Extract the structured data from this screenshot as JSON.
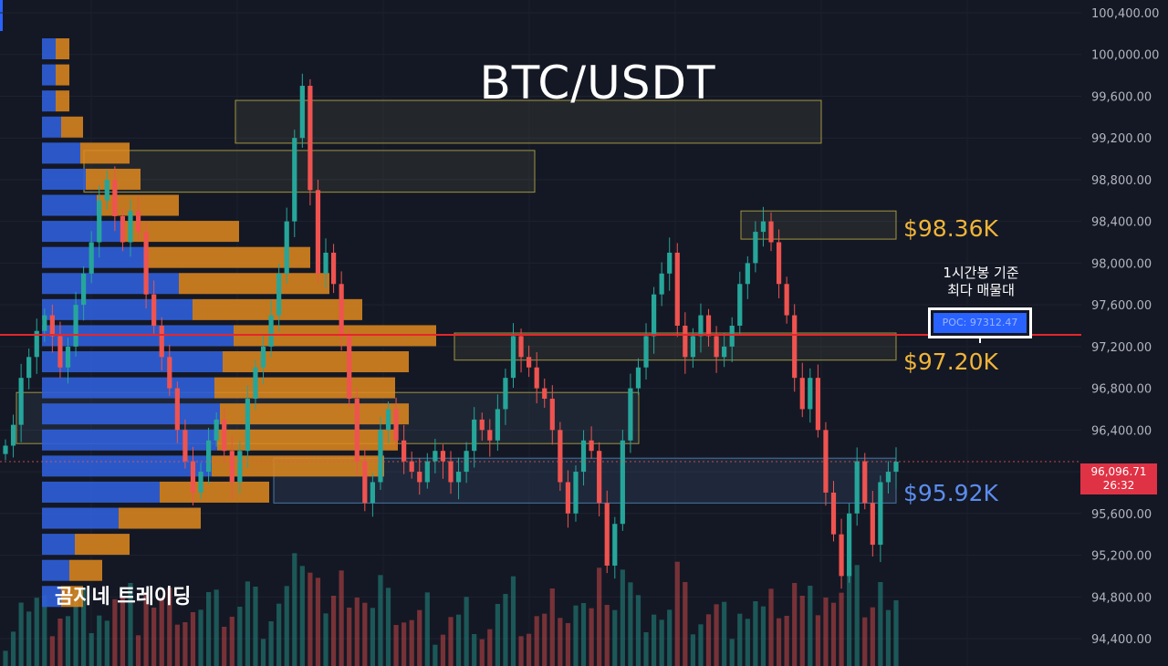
{
  "chart_data": {
    "type": "candlestick",
    "title": "BTC/USDT",
    "watermark": "곰지네 트레이딩",
    "yaxis": {
      "ticks": [
        "100,400.00",
        "100,000.00",
        "99,600.00",
        "99,200.00",
        "98,800.00",
        "98,400.00",
        "98,000.00",
        "97,600.00",
        "97,200.00",
        "96,800.00",
        "96,400.00",
        "96,000.00",
        "95,600.00",
        "95,200.00",
        "94,800.00",
        "94,400.00"
      ],
      "range": [
        94260,
        100460
      ]
    },
    "current_price": "96,096.71",
    "countdown": "26:32",
    "poc": {
      "caption": [
        "1시간봉 기준",
        "최다 매물대"
      ],
      "label": "POC: 97312.47",
      "value": 97312.47
    },
    "levels": [
      {
        "label": "$98.36K",
        "value": 98360,
        "color": "#f0b43a"
      },
      {
        "label": "$97.20K",
        "value": 97200,
        "color": "#f0b43a"
      },
      {
        "label": "$95.92K",
        "value": 95920,
        "color": "#5b8def"
      }
    ],
    "close_series": [
      96250,
      96450,
      96900,
      97100,
      97350,
      97500,
      97300,
      97000,
      97200,
      97600,
      97900,
      98200,
      98600,
      98800,
      98450,
      98200,
      98500,
      98300,
      97700,
      97400,
      97100,
      96800,
      96400,
      96100,
      95800,
      96000,
      96300,
      96500,
      96200,
      95900,
      96200,
      96700,
      97000,
      97200,
      97500,
      97900,
      98400,
      99200,
      99700,
      98700,
      97900,
      98100,
      97800,
      97300,
      96700,
      96100,
      95700,
      95900,
      96400,
      96600,
      96300,
      96100,
      96000,
      95900,
      96100,
      96200,
      96100,
      95900,
      96000,
      96200,
      96500,
      96400,
      96300,
      96600,
      96900,
      97300,
      97100,
      97000,
      96800,
      96700,
      96400,
      95900,
      95600,
      96000,
      96300,
      96200,
      95700,
      95100,
      95500,
      96300,
      96800,
      97000,
      97300,
      97700,
      97900,
      98100,
      97400,
      97100,
      97300,
      97500,
      97300,
      97100,
      97200,
      97400,
      97800,
      98000,
      98300,
      98400,
      98200,
      97800,
      97500,
      96900,
      96600,
      96900,
      96400,
      95800,
      95400,
      95000,
      95600,
      96100,
      95700,
      95300,
      95900,
      96000,
      96096.71
    ],
    "volume_profile": [
      {
        "price": 100050,
        "buy": 0.05,
        "sell": 0.05
      },
      {
        "price": 99800,
        "buy": 0.05,
        "sell": 0.05
      },
      {
        "price": 99550,
        "buy": 0.05,
        "sell": 0.05
      },
      {
        "price": 99300,
        "buy": 0.07,
        "sell": 0.08
      },
      {
        "price": 99050,
        "buy": 0.14,
        "sell": 0.18
      },
      {
        "price": 98800,
        "buy": 0.16,
        "sell": 0.2
      },
      {
        "price": 98550,
        "buy": 0.2,
        "sell": 0.3
      },
      {
        "price": 98300,
        "buy": 0.3,
        "sell": 0.42
      },
      {
        "price": 98050,
        "buy": 0.38,
        "sell": 0.6
      },
      {
        "price": 97800,
        "buy": 0.5,
        "sell": 0.55
      },
      {
        "price": 97550,
        "buy": 0.55,
        "sell": 0.62
      },
      {
        "price": 97300,
        "buy": 0.7,
        "sell": 0.74
      },
      {
        "price": 97050,
        "buy": 0.66,
        "sell": 0.68
      },
      {
        "price": 96800,
        "buy": 0.63,
        "sell": 0.66
      },
      {
        "price": 96550,
        "buy": 0.65,
        "sell": 0.69
      },
      {
        "price": 96300,
        "buy": 0.64,
        "sell": 0.66
      },
      {
        "price": 96050,
        "buy": 0.62,
        "sell": 0.63
      },
      {
        "price": 95800,
        "buy": 0.43,
        "sell": 0.4
      },
      {
        "price": 95550,
        "buy": 0.28,
        "sell": 0.3
      },
      {
        "price": 95300,
        "buy": 0.12,
        "sell": 0.2
      },
      {
        "price": 95050,
        "buy": 0.1,
        "sell": 0.12
      },
      {
        "price": 94800,
        "buy": 0.07,
        "sell": 0.08
      }
    ],
    "zones": [
      {
        "top": 99560,
        "bottom": 99150,
        "color": "#d8c84a",
        "fill": "rgba(150,150,110,0.12)"
      },
      {
        "top": 99080,
        "bottom": 98680,
        "color": "#d8c84a",
        "fill": "rgba(150,150,110,0.12)"
      },
      {
        "top": 98500,
        "bottom": 98230,
        "color": "#d8c84a",
        "fill": "rgba(150,150,110,0.12)"
      },
      {
        "top": 97330,
        "bottom": 97070,
        "color": "#d8c84a",
        "fill": "rgba(150,150,110,0.12)"
      },
      {
        "top": 96760,
        "bottom": 96270,
        "color": "#d8c84a",
        "fill": "rgba(110,140,170,0.12)"
      },
      {
        "top": 96130,
        "bottom": 95700,
        "color": "#5b9ad6",
        "fill": "rgba(90,140,200,0.14)"
      }
    ]
  }
}
